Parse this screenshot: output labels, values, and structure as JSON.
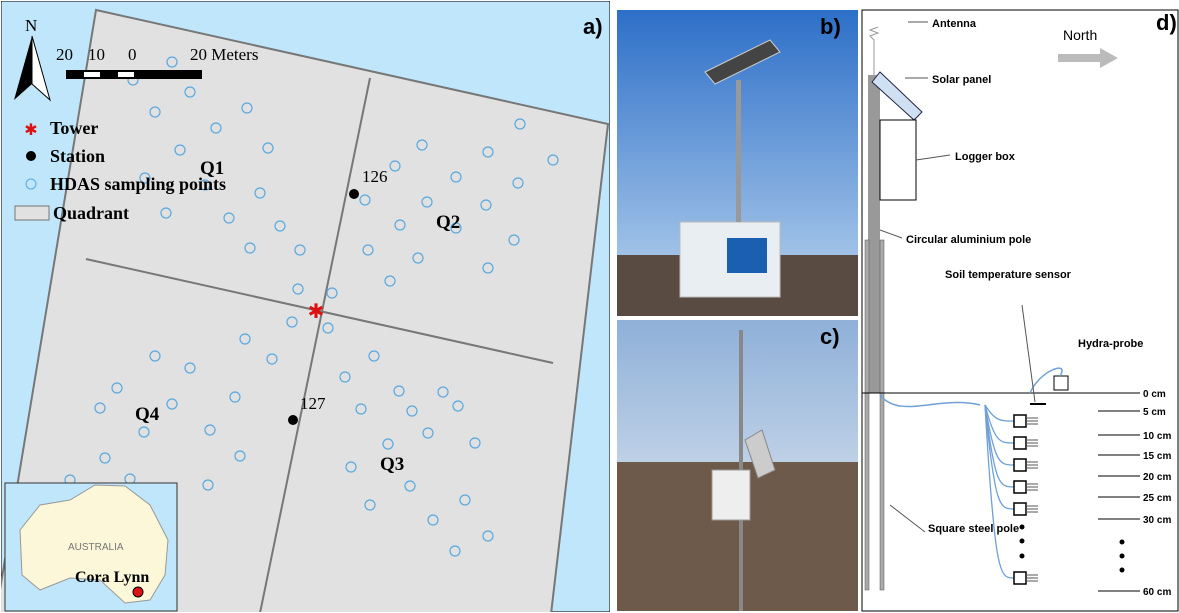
{
  "panel_a": {
    "label": "a)",
    "north": "N",
    "scale": [
      "20",
      "10",
      "0",
      "20 Meters"
    ],
    "legend": [
      "Tower",
      "Station",
      "HDAS sampling points",
      "Quadrant"
    ],
    "quadrants": [
      "Q1",
      "Q2",
      "Q3",
      "Q4"
    ],
    "stations": [
      "126",
      "127"
    ],
    "inset": {
      "country": "AUSTRALIA",
      "site": "Cora Lynn"
    }
  },
  "panel_b": {
    "label": "b)"
  },
  "panel_c": {
    "label": "c)"
  },
  "panel_d": {
    "label": "d)",
    "north": "North",
    "parts": [
      "Antenna",
      "Solar panel",
      "Logger box",
      "Circular aluminium pole",
      "Soil temperature sensor",
      "Hydra-probe",
      "Square steel pole"
    ],
    "depths": [
      "0 cm",
      "5 cm",
      "10 cm",
      "15 cm",
      "20 cm",
      "25 cm",
      "30 cm",
      "60 cm"
    ]
  }
}
